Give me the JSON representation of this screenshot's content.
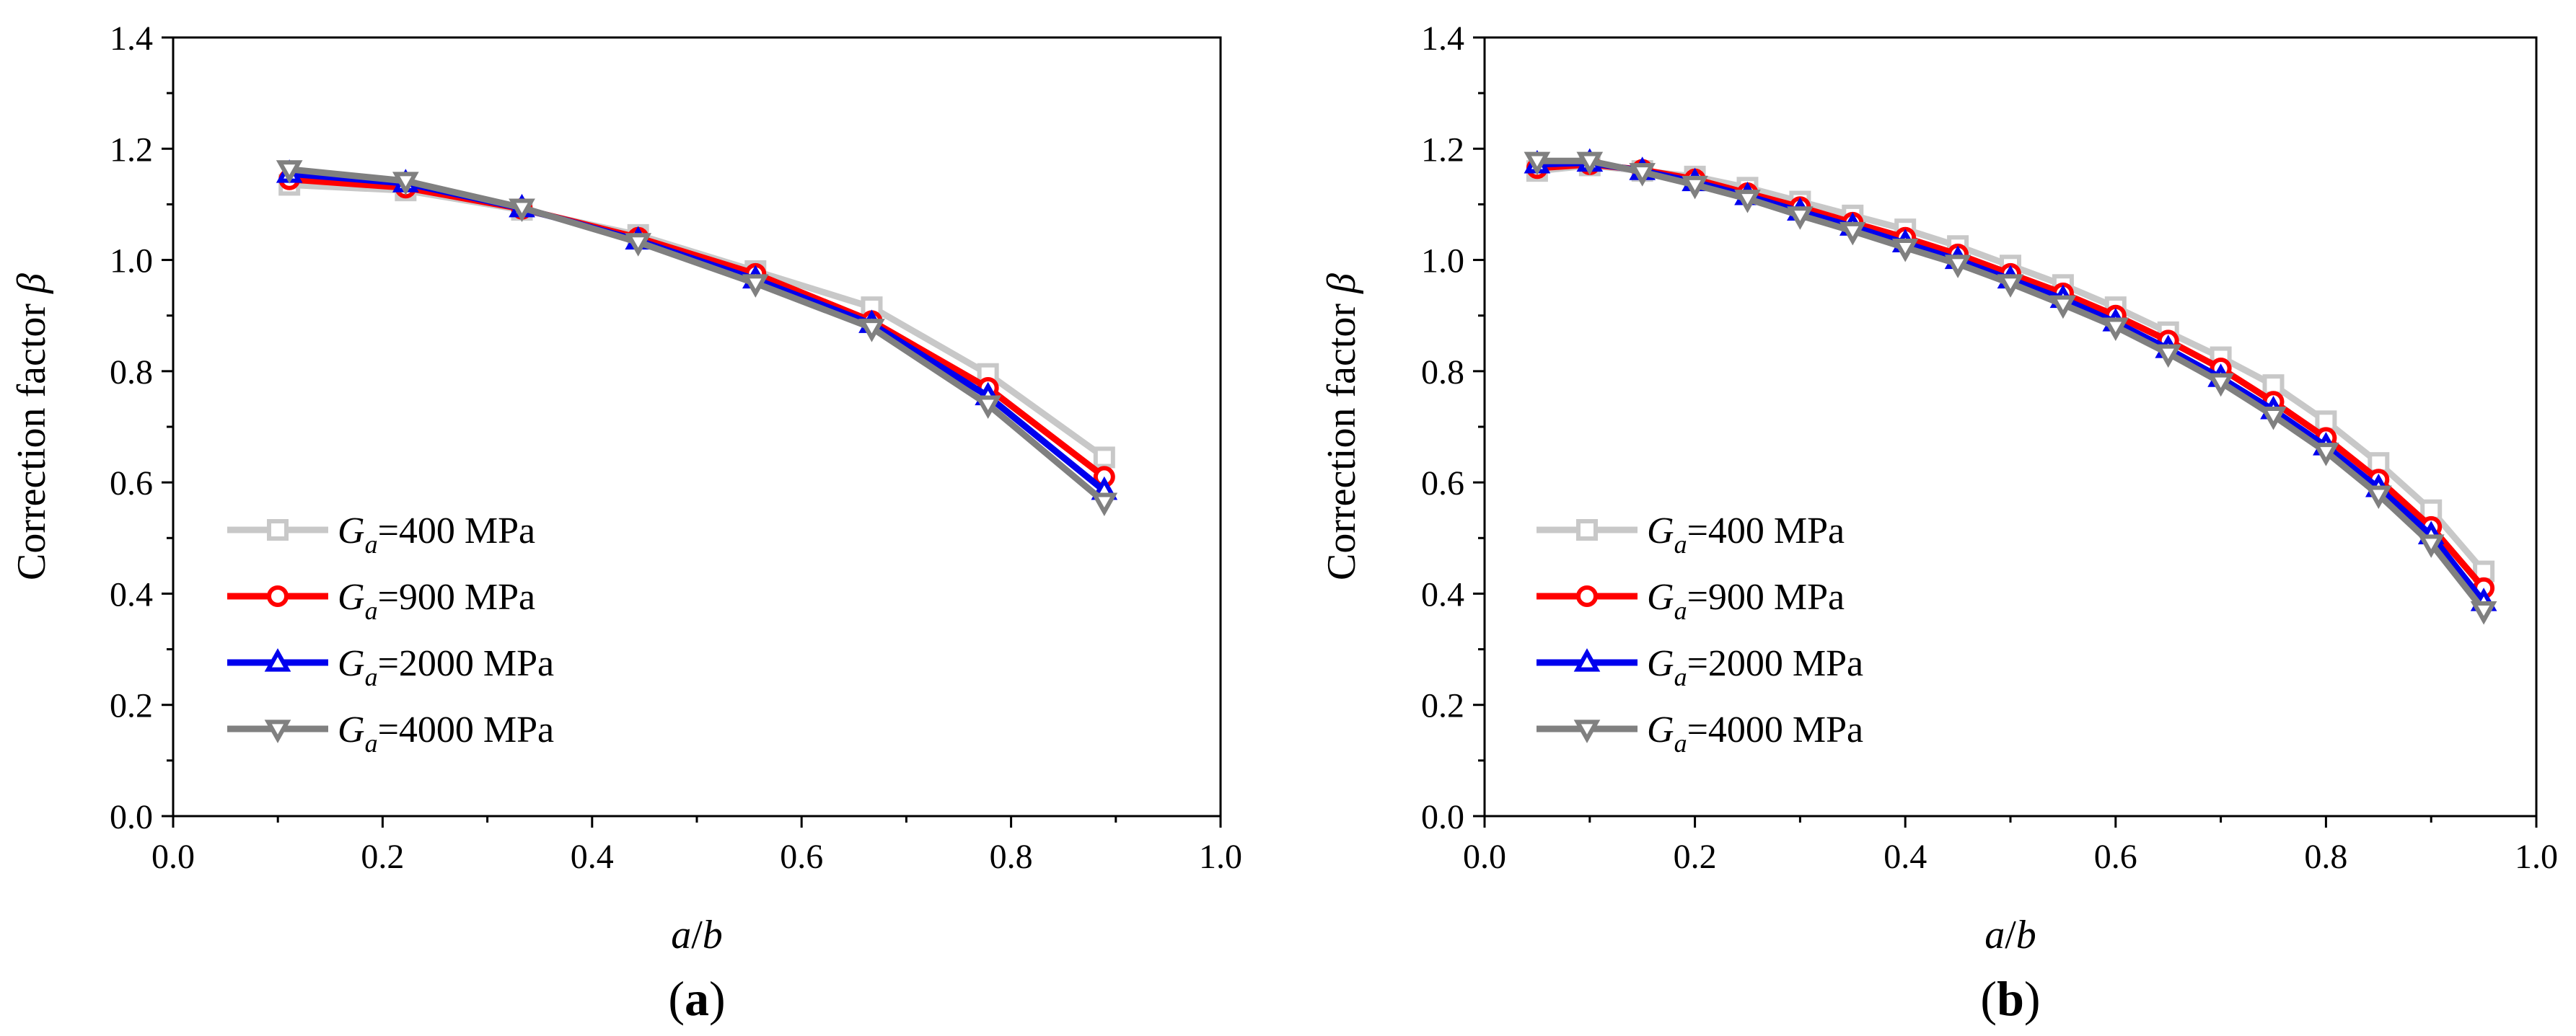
{
  "chart_data": [
    {
      "type": "line",
      "panel_label": "(a)",
      "panel_label_bold": "a",
      "xlabel": "a/b",
      "xlabel_parts": [
        "a",
        "/",
        "b"
      ],
      "ylabel": "Correction factor β",
      "ylabel_text": "Correction factor ",
      "ylabel_symbol": "β",
      "xlim": [
        0.0,
        1.0
      ],
      "ylim": [
        0.0,
        1.4
      ],
      "xticks": [
        "0.0",
        "0.2",
        "0.4",
        "0.6",
        "0.8",
        "1.0"
      ],
      "yticks": [
        "0.0",
        "0.2",
        "0.4",
        "0.6",
        "0.8",
        "1.0",
        "1.2",
        "1.4"
      ],
      "grid": false,
      "legend_position": "lower-left",
      "x": [
        0.111,
        0.222,
        0.333,
        0.444,
        0.556,
        0.667,
        0.778,
        0.889
      ],
      "series": [
        {
          "name": "Ga=400 MPa",
          "label_main": "G",
          "label_sub": "a",
          "label_rest": "=400 MPa",
          "color": "#c8c8c8",
          "marker": "square",
          "values": [
            1.135,
            1.125,
            1.09,
            1.045,
            0.98,
            0.915,
            0.795,
            0.645
          ]
        },
        {
          "name": "Ga=900 MPa",
          "label_main": "G",
          "label_sub": "a",
          "label_rest": "=900 MPa",
          "color": "#ff0000",
          "marker": "circle",
          "values": [
            1.145,
            1.13,
            1.092,
            1.04,
            0.975,
            0.89,
            0.77,
            0.61
          ]
        },
        {
          "name": "Ga=2000 MPa",
          "label_main": "G",
          "label_sub": "a",
          "label_rest": "=2000 MPa",
          "color": "#0000ee",
          "marker": "triangle-up",
          "values": [
            1.155,
            1.138,
            1.093,
            1.035,
            0.965,
            0.885,
            0.755,
            0.585
          ]
        },
        {
          "name": "Ga=4000 MPa",
          "label_main": "G",
          "label_sub": "a",
          "label_rest": "=4000 MPa",
          "color": "#808080",
          "marker": "triangle-down",
          "values": [
            1.163,
            1.142,
            1.094,
            1.032,
            0.958,
            0.878,
            0.74,
            0.565
          ]
        }
      ]
    },
    {
      "type": "line",
      "panel_label": "(b)",
      "panel_label_bold": "b",
      "xlabel": "a/b",
      "xlabel_parts": [
        "a",
        "/",
        "b"
      ],
      "ylabel": "Correction factor β",
      "ylabel_text": "Correction factor ",
      "ylabel_symbol": "β",
      "xlim": [
        0.0,
        1.0
      ],
      "ylim": [
        0.0,
        1.4
      ],
      "xticks": [
        "0.0",
        "0.2",
        "0.4",
        "0.6",
        "0.8",
        "1.0"
      ],
      "yticks": [
        "0.0",
        "0.2",
        "0.4",
        "0.6",
        "0.8",
        "1.0",
        "1.2",
        "1.4"
      ],
      "grid": false,
      "legend_position": "lower-left",
      "x": [
        0.05,
        0.1,
        0.15,
        0.2,
        0.25,
        0.3,
        0.35,
        0.4,
        0.45,
        0.5,
        0.55,
        0.6,
        0.65,
        0.7,
        0.75,
        0.8,
        0.85,
        0.9,
        0.95
      ],
      "series": [
        {
          "name": "Ga=400 MPa",
          "label_main": "G",
          "label_sub": "a",
          "label_rest": "=400 MPa",
          "color": "#c8c8c8",
          "marker": "square",
          "values": [
            1.16,
            1.17,
            1.16,
            1.15,
            1.13,
            1.105,
            1.08,
            1.055,
            1.025,
            0.99,
            0.955,
            0.915,
            0.87,
            0.825,
            0.775,
            0.71,
            0.635,
            0.55,
            0.44
          ]
        },
        {
          "name": "Ga=900 MPa",
          "label_main": "G",
          "label_sub": "a",
          "label_rest": "=900 MPa",
          "color": "#ff0000",
          "marker": "circle",
          "values": [
            1.165,
            1.172,
            1.162,
            1.145,
            1.12,
            1.095,
            1.067,
            1.04,
            1.01,
            0.975,
            0.94,
            0.9,
            0.855,
            0.805,
            0.745,
            0.68,
            0.605,
            0.52,
            0.41
          ]
        },
        {
          "name": "Ga=2000 MPa",
          "label_main": "G",
          "label_sub": "a",
          "label_rest": "=2000 MPa",
          "color": "#0000ee",
          "marker": "triangle-up",
          "values": [
            1.172,
            1.175,
            1.16,
            1.14,
            1.115,
            1.087,
            1.06,
            1.03,
            1.0,
            0.965,
            0.93,
            0.888,
            0.84,
            0.788,
            0.73,
            0.665,
            0.59,
            0.505,
            0.385
          ]
        },
        {
          "name": "Ga=4000 MPa",
          "label_main": "G",
          "label_sub": "a",
          "label_rest": "=4000 MPa",
          "color": "#808080",
          "marker": "triangle-down",
          "values": [
            1.178,
            1.178,
            1.158,
            1.135,
            1.11,
            1.08,
            1.052,
            1.022,
            0.993,
            0.958,
            0.92,
            0.88,
            0.832,
            0.78,
            0.72,
            0.655,
            0.578,
            0.49,
            0.37
          ]
        }
      ]
    }
  ]
}
